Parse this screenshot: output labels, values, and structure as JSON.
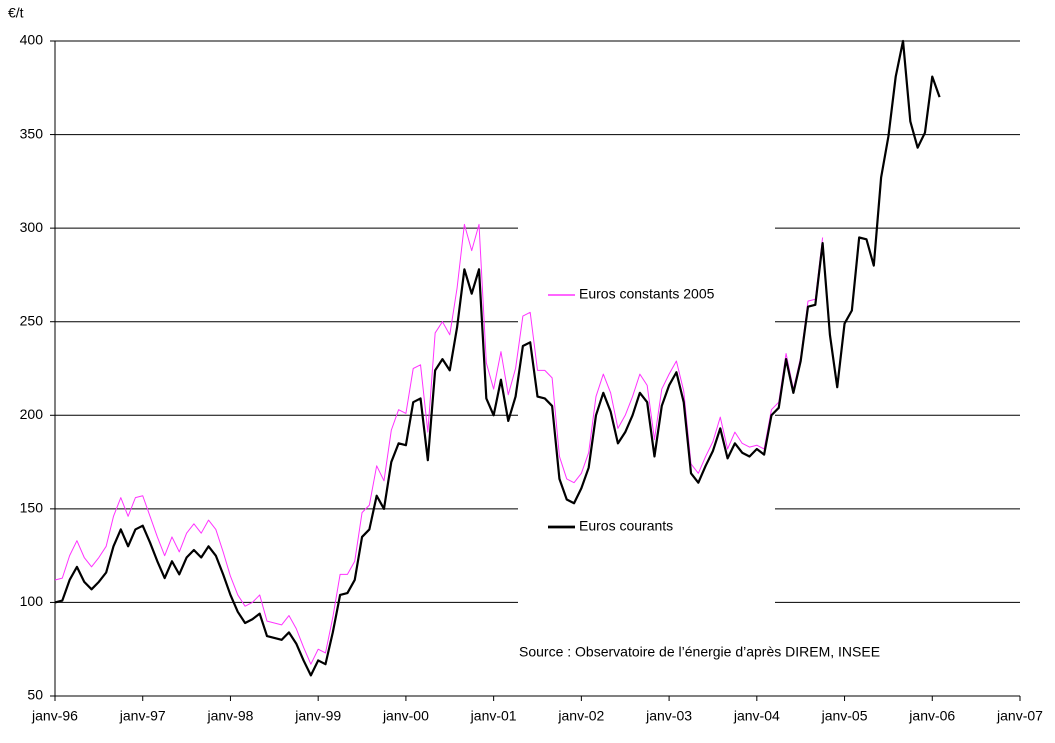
{
  "chart_data": {
    "type": "line",
    "y_label": "€/t",
    "annotation": "Source : Observatoire de l’énergie d’après DIREM, INSEE",
    "categories": [
      "janv-96",
      null,
      null,
      null,
      null,
      null,
      null,
      null,
      null,
      null,
      null,
      null,
      "janv-97",
      null,
      null,
      null,
      null,
      null,
      null,
      null,
      null,
      null,
      null,
      null,
      "janv-98",
      null,
      null,
      null,
      null,
      null,
      null,
      null,
      null,
      null,
      null,
      null,
      "janv-99",
      null,
      null,
      null,
      null,
      null,
      null,
      null,
      null,
      null,
      null,
      null,
      "janv-00",
      null,
      null,
      null,
      null,
      null,
      null,
      null,
      null,
      null,
      null,
      null,
      "janv-01",
      null,
      null,
      null,
      null,
      null,
      null,
      null,
      null,
      null,
      null,
      null,
      "janv-02",
      null,
      null,
      null,
      null,
      null,
      null,
      null,
      null,
      null,
      null,
      null,
      "janv-03",
      null,
      null,
      null,
      null,
      null,
      null,
      null,
      null,
      null,
      null,
      null,
      "janv-04",
      null,
      null,
      null,
      null,
      null,
      null,
      null,
      null,
      null,
      null,
      null,
      "janv-05",
      null,
      null,
      null,
      null,
      null,
      null,
      null,
      null,
      null,
      null,
      null,
      "janv-06",
      null,
      null,
      null,
      null,
      null,
      null,
      null,
      null,
      null,
      null,
      null,
      "janv-07"
    ],
    "series": [
      {
        "name": "Euros constants 2005",
        "color": "#ff33ff",
        "width": 1,
        "values": [
          112,
          113,
          125,
          133,
          124,
          119,
          124,
          130,
          146,
          156,
          146,
          156,
          157,
          146,
          135,
          125,
          135,
          127,
          137,
          142,
          137,
          144,
          139,
          127,
          114,
          104,
          98,
          100,
          104,
          90,
          89,
          88,
          93,
          86,
          76,
          67,
          75,
          73,
          92,
          115,
          115,
          122,
          148,
          152,
          173,
          165,
          192,
          203,
          201,
          225,
          227,
          191,
          244,
          250,
          243,
          268,
          302,
          288,
          302,
          228,
          214,
          234,
          211,
          225,
          253,
          255,
          224,
          224,
          220,
          178,
          166,
          164,
          169,
          180,
          210,
          222,
          212,
          193,
          200,
          210,
          222,
          216,
          187,
          214,
          222,
          229,
          213,
          174,
          169,
          178,
          186,
          199,
          182,
          191,
          185,
          183,
          184,
          182,
          203,
          207,
          233,
          214,
          231,
          261,
          262,
          295,
          null,
          null,
          null,
          null,
          null,
          null,
          null,
          null,
          null,
          null,
          null,
          null,
          null,
          null,
          null,
          null,
          null,
          null,
          null,
          null,
          null,
          null,
          null,
          null,
          null,
          null,
          null
        ]
      },
      {
        "name": "Euros courants",
        "color": "#000000",
        "width": 2.2,
        "values": [
          100,
          101,
          112,
          119,
          111,
          107,
          111,
          116,
          130,
          139,
          130,
          139,
          141,
          132,
          122,
          113,
          122,
          115,
          124,
          128,
          124,
          130,
          125,
          115,
          104,
          95,
          89,
          91,
          94,
          82,
          81,
          80,
          84,
          78,
          69,
          61,
          69,
          67,
          84,
          104,
          105,
          112,
          135,
          139,
          157,
          150,
          175,
          185,
          184,
          207,
          209,
          176,
          224,
          230,
          224,
          247,
          278,
          265,
          278,
          209,
          200,
          219,
          197,
          210,
          237,
          239,
          210,
          209,
          205,
          166,
          155,
          153,
          161,
          172,
          200,
          212,
          202,
          185,
          191,
          200,
          212,
          207,
          178,
          205,
          216,
          223,
          207,
          169,
          164,
          173,
          181,
          193,
          177,
          185,
          180,
          178,
          182,
          179,
          200,
          204,
          230,
          212,
          229,
          258,
          259,
          292,
          243,
          215,
          249,
          256,
          295,
          294,
          280,
          327,
          349,
          381,
          400,
          357,
          343,
          351,
          381,
          370,
          null,
          null,
          null,
          null,
          null,
          null,
          null,
          null,
          null,
          null,
          null
        ]
      }
    ],
    "ylim": [
      50,
      400
    ],
    "yticks": [
      50,
      100,
      150,
      200,
      250,
      300,
      350,
      400
    ],
    "grid": true
  }
}
